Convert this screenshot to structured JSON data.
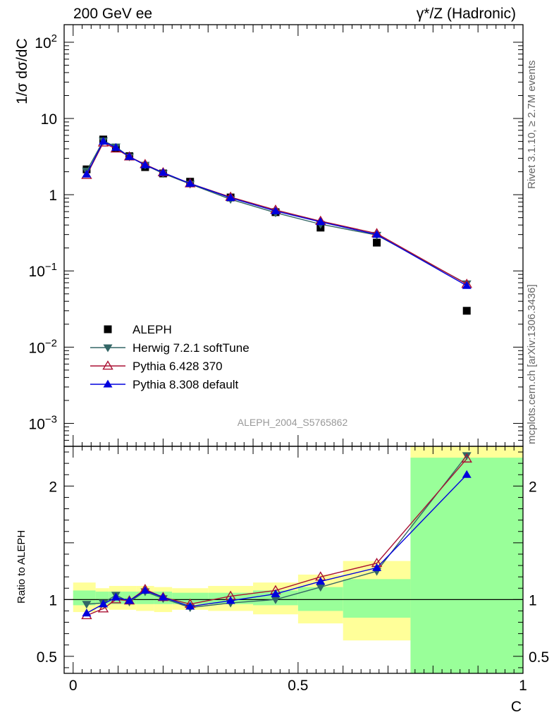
{
  "header": {
    "left": "200 GeV ee",
    "right": "γ*/Z (Hadronic)"
  },
  "side_labels": {
    "rivet": "Rivet 3.1.10, ≥ 2.7M events",
    "mcplots": "mcplots.cern.ch [arXiv:1306.3436]"
  },
  "chart_data": [
    {
      "type": "scatter",
      "panel": "main",
      "analysis_label": "ALEPH_2004_S5765862",
      "ylabel": "1/σ dσ/dC",
      "yscale": "log",
      "ylim": [
        0.0005,
        170
      ],
      "xlim": [
        -0.02,
        1.0
      ],
      "yticks": [
        {
          "value": 100,
          "base": "10",
          "exp": "2"
        },
        {
          "value": 10,
          "base": "10",
          "exp": ""
        },
        {
          "value": 1,
          "base": "1",
          "exp": ""
        },
        {
          "value": 0.1,
          "base": "10",
          "exp": "−1"
        },
        {
          "value": 0.01,
          "base": "10",
          "exp": "−2"
        },
        {
          "value": 0.001,
          "base": "10",
          "exp": "−3"
        }
      ],
      "legend_position": "lower-left",
      "series": [
        {
          "name": "ALEPH",
          "color": "#000000",
          "marker": "square",
          "x": [
            0.03,
            0.067,
            0.095,
            0.125,
            0.16,
            0.2,
            0.26,
            0.35,
            0.45,
            0.55,
            0.675,
            0.875
          ],
          "y": [
            2.15,
            5.3,
            4.1,
            3.2,
            2.3,
            1.9,
            1.48,
            0.92,
            0.59,
            0.37,
            0.235,
            0.03
          ]
        },
        {
          "name": "Herwig 7.2.1 softTune",
          "color": "#336666",
          "marker": "triangle-down",
          "x": [
            0.03,
            0.067,
            0.095,
            0.125,
            0.16,
            0.2,
            0.26,
            0.35,
            0.45,
            0.55,
            0.675,
            0.875
          ],
          "y": [
            2.05,
            5.1,
            4.25,
            3.15,
            2.45,
            1.9,
            1.38,
            0.87,
            0.58,
            0.41,
            0.295,
            0.068
          ]
        },
        {
          "name": "Pythia 6.428 370",
          "color": "#aa1133",
          "marker": "triangle-open",
          "x": [
            0.03,
            0.067,
            0.095,
            0.125,
            0.16,
            0.2,
            0.26,
            0.35,
            0.45,
            0.55,
            0.675,
            0.875
          ],
          "y": [
            1.8,
            4.8,
            4.0,
            3.15,
            2.5,
            1.95,
            1.4,
            0.93,
            0.63,
            0.45,
            0.31,
            0.067
          ]
        },
        {
          "name": "Pythia 8.308 default",
          "color": "#0000dd",
          "marker": "triangle-up",
          "x": [
            0.03,
            0.067,
            0.095,
            0.125,
            0.16,
            0.2,
            0.26,
            0.35,
            0.45,
            0.55,
            0.675,
            0.875
          ],
          "y": [
            1.85,
            5.0,
            4.15,
            3.15,
            2.45,
            1.95,
            1.4,
            0.91,
            0.61,
            0.44,
            0.3,
            0.064
          ]
        }
      ]
    },
    {
      "type": "line",
      "panel": "ratio",
      "ylabel": "Ratio to ALEPH",
      "xlabel": "C",
      "ylim": [
        0.35,
        2.35
      ],
      "xlim": [
        -0.02,
        1.0
      ],
      "xticks": [
        0,
        0.5,
        1
      ],
      "xtick_labels": [
        "0",
        "0.5",
        "1"
      ],
      "yticks": [
        0.5,
        1,
        2
      ],
      "ytick_labels": [
        "0.5",
        "1",
        "2"
      ],
      "reference_line": 1,
      "bands": [
        {
          "x0": 0.0,
          "x1": 0.05,
          "stat_lo": 0.95,
          "stat_hi": 1.08,
          "tot_lo": 0.89,
          "tot_hi": 1.15
        },
        {
          "x0": 0.05,
          "x1": 0.08,
          "stat_lo": 0.96,
          "stat_hi": 1.07,
          "tot_lo": 0.92,
          "tot_hi": 1.1
        },
        {
          "x0": 0.08,
          "x1": 0.11,
          "stat_lo": 0.96,
          "stat_hi": 1.07,
          "tot_lo": 0.91,
          "tot_hi": 1.12
        },
        {
          "x0": 0.11,
          "x1": 0.14,
          "stat_lo": 0.96,
          "stat_hi": 1.07,
          "tot_lo": 0.91,
          "tot_hi": 1.12
        },
        {
          "x0": 0.14,
          "x1": 0.18,
          "stat_lo": 0.96,
          "stat_hi": 1.07,
          "tot_lo": 0.9,
          "tot_hi": 1.12
        },
        {
          "x0": 0.18,
          "x1": 0.22,
          "stat_lo": 0.96,
          "stat_hi": 1.07,
          "tot_lo": 0.89,
          "tot_hi": 1.11
        },
        {
          "x0": 0.22,
          "x1": 0.3,
          "stat_lo": 0.96,
          "stat_hi": 1.06,
          "tot_lo": 0.91,
          "tot_hi": 1.1
        },
        {
          "x0": 0.3,
          "x1": 0.4,
          "stat_lo": 0.96,
          "stat_hi": 1.06,
          "tot_lo": 0.9,
          "tot_hi": 1.12
        },
        {
          "x0": 0.4,
          "x1": 0.5,
          "stat_lo": 0.95,
          "stat_hi": 1.08,
          "tot_lo": 0.87,
          "tot_hi": 1.15
        },
        {
          "x0": 0.5,
          "x1": 0.6,
          "stat_lo": 0.9,
          "stat_hi": 1.11,
          "tot_lo": 0.79,
          "tot_hi": 1.22
        },
        {
          "x0": 0.6,
          "x1": 0.75,
          "stat_lo": 0.84,
          "stat_hi": 1.18,
          "tot_lo": 0.64,
          "tot_hi": 1.34
        },
        {
          "x0": 0.75,
          "x1": 1.0,
          "stat_lo": 0.35,
          "stat_hi": 2.25,
          "tot_lo": 0.35,
          "tot_hi": 2.35
        }
      ],
      "series": [
        {
          "name": "Herwig 7.2.1 softTune",
          "color": "#336666",
          "marker": "triangle-down",
          "x": [
            0.03,
            0.067,
            0.095,
            0.125,
            0.16,
            0.2,
            0.26,
            0.35,
            0.45,
            0.55,
            0.675,
            0.875
          ],
          "y": [
            0.96,
            0.97,
            1.04,
            0.98,
            1.07,
            1.01,
            0.93,
            0.97,
            1.0,
            1.11,
            1.25,
            2.27
          ]
        },
        {
          "name": "Pythia 6.428 370",
          "color": "#aa1133",
          "marker": "triangle-open",
          "x": [
            0.03,
            0.067,
            0.095,
            0.125,
            0.16,
            0.2,
            0.26,
            0.35,
            0.45,
            0.55,
            0.675,
            0.875
          ],
          "y": [
            0.86,
            0.92,
            1.0,
            0.99,
            1.09,
            1.02,
            0.96,
            1.03,
            1.08,
            1.2,
            1.32,
            2.24
          ]
        },
        {
          "name": "Pythia 8.308 default",
          "color": "#0000dd",
          "marker": "triangle-up",
          "x": [
            0.03,
            0.067,
            0.095,
            0.125,
            0.16,
            0.2,
            0.26,
            0.35,
            0.45,
            0.55,
            0.675,
            0.875
          ],
          "y": [
            0.88,
            0.96,
            1.02,
            0.99,
            1.08,
            1.02,
            0.94,
            0.99,
            1.05,
            1.16,
            1.28,
            2.1
          ]
        }
      ]
    }
  ]
}
